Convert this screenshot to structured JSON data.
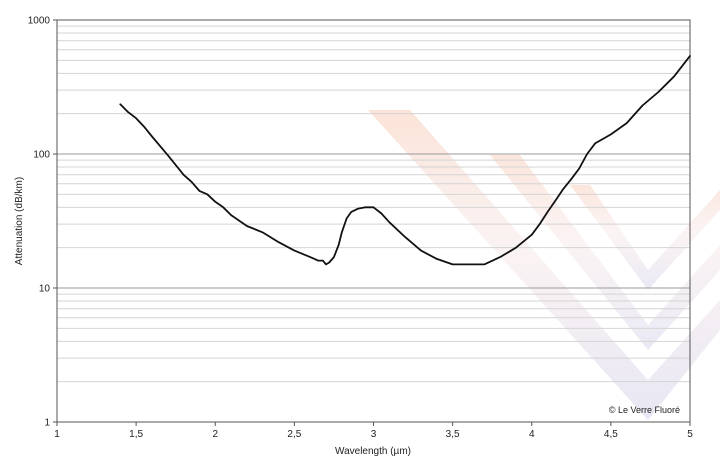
{
  "chart_data": {
    "type": "line",
    "title": "",
    "xlabel": "Wavelength (µm)",
    "ylabel": "Attenuation (dB/km)",
    "xlim": [
      1,
      5
    ],
    "ylim": [
      1,
      1000
    ],
    "y_scale": "log",
    "grid": "horizontal minor and major",
    "x_ticks": [
      1,
      1.5,
      2,
      2.5,
      3,
      3.5,
      4,
      4.5,
      5
    ],
    "x_tick_labels": [
      "1",
      "1,5",
      "2",
      "2,5",
      "3",
      "3,5",
      "4",
      "4,5",
      "5"
    ],
    "y_ticks": [
      1,
      10,
      100,
      1000
    ],
    "y_tick_labels": [
      "1",
      "10",
      "100",
      "1000"
    ],
    "line_color": "#111111",
    "series": [
      {
        "x": [
          1.4,
          1.45,
          1.5,
          1.55,
          1.6,
          1.7,
          1.8,
          1.85,
          1.9,
          1.95,
          2.0,
          2.05,
          2.1,
          2.2,
          2.3,
          2.4,
          2.5,
          2.55,
          2.6,
          2.65,
          2.68,
          2.7,
          2.72,
          2.75,
          2.78,
          2.8,
          2.83,
          2.86,
          2.9,
          2.95,
          3.0,
          3.05,
          3.1,
          3.2,
          3.3,
          3.4,
          3.5,
          3.6,
          3.7,
          3.8,
          3.9,
          4.0,
          4.05,
          4.1,
          4.15,
          4.2,
          4.25,
          4.3,
          4.35,
          4.4,
          4.5,
          4.6,
          4.7,
          4.8,
          4.9,
          5.0
        ],
        "values": [
          235,
          205,
          185,
          160,
          135,
          98,
          70,
          62,
          53,
          50,
          44,
          40,
          35,
          29,
          26,
          22,
          19,
          18,
          17,
          16,
          16,
          15,
          15.5,
          17,
          21,
          26,
          33,
          37,
          39,
          40,
          40,
          36,
          31,
          24,
          19,
          16.5,
          15,
          15,
          15,
          17,
          20,
          25,
          30,
          37,
          45,
          55,
          65,
          78,
          100,
          120,
          140,
          170,
          230,
          290,
          380,
          540
        ]
      }
    ],
    "annotations": [
      "© Le Verre Fluoré"
    ]
  },
  "watermark": {
    "colors": [
      "#f2a27c",
      "#a8a6d4",
      "#c9d9a8"
    ]
  }
}
